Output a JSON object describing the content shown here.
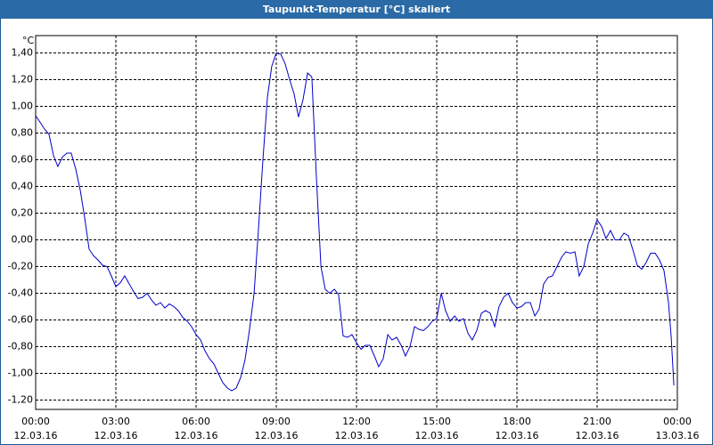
{
  "chart_data": {
    "type": "line",
    "title": "Taupunkt-Temperatur [°C] skaliert",
    "y_unit": "°C",
    "xlim": [
      0,
      24
    ],
    "ylim": [
      -1.27,
      1.53
    ],
    "xticks": [
      {
        "value": 0,
        "label": "00:00"
      },
      {
        "value": 3,
        "label": "03:00"
      },
      {
        "value": 6,
        "label": "06:00"
      },
      {
        "value": 9,
        "label": "09:00"
      },
      {
        "value": 12,
        "label": "12:00"
      },
      {
        "value": 15,
        "label": "15:00"
      },
      {
        "value": 18,
        "label": "18:00"
      },
      {
        "value": 21,
        "label": "21:00"
      },
      {
        "value": 24,
        "label": "00:00"
      }
    ],
    "xtick_dates": [
      "12.03.16",
      "12.03.16",
      "12.03.16",
      "12.03.16",
      "12.03.16",
      "12.03.16",
      "12.03.16",
      "12.03.16",
      "13.03.16"
    ],
    "yticks": [
      {
        "value": 1.4,
        "label": "1,40"
      },
      {
        "value": 1.2,
        "label": "1,20"
      },
      {
        "value": 1.0,
        "label": "1,00"
      },
      {
        "value": 0.8,
        "label": "0,80"
      },
      {
        "value": 0.6,
        "label": "0,60"
      },
      {
        "value": 0.4,
        "label": "0,40"
      },
      {
        "value": 0.2,
        "label": "0,20"
      },
      {
        "value": 0,
        "label": "0,00"
      },
      {
        "value": -0.2,
        "label": "-0,20"
      },
      {
        "value": -0.4,
        "label": "-0,40"
      },
      {
        "value": -0.6,
        "label": "-0,60"
      },
      {
        "value": -0.8,
        "label": "-0,80"
      },
      {
        "value": -1.0,
        "label": "-1,00"
      },
      {
        "value": -1.2,
        "label": "-1,20"
      }
    ],
    "grid": true,
    "series": [
      {
        "color": "#0000c8",
        "x": [
          0,
          0.17,
          0.33,
          0.5,
          0.67,
          0.83,
          1,
          1.17,
          1.33,
          1.5,
          1.67,
          1.83,
          2,
          2.17,
          2.33,
          2.5,
          2.67,
          2.83,
          3,
          3.17,
          3.33,
          3.5,
          3.67,
          3.83,
          4,
          4.17,
          4.33,
          4.5,
          4.67,
          4.83,
          5,
          5.17,
          5.33,
          5.5,
          5.67,
          5.83,
          6,
          6.17,
          6.33,
          6.5,
          6.67,
          6.83,
          7,
          7.17,
          7.33,
          7.5,
          7.67,
          7.83,
          8,
          8.17,
          8.33,
          8.5,
          8.67,
          8.83,
          9,
          9.17,
          9.33,
          9.5,
          9.67,
          9.83,
          10,
          10.17,
          10.33,
          10.5,
          10.67,
          10.83,
          11,
          11.17,
          11.33,
          11.5,
          11.67,
          11.83,
          12,
          12.17,
          12.33,
          12.5,
          12.67,
          12.83,
          13,
          13.17,
          13.33,
          13.5,
          13.67,
          13.83,
          14,
          14.17,
          14.33,
          14.5,
          14.67,
          14.83,
          15,
          15.17,
          15.33,
          15.5,
          15.67,
          15.83,
          16,
          16.17,
          16.33,
          16.5,
          16.67,
          16.83,
          17,
          17.17,
          17.33,
          17.5,
          17.67,
          17.83,
          18,
          18.17,
          18.33,
          18.5,
          18.67,
          18.83,
          19,
          19.17,
          19.33,
          19.5,
          19.67,
          19.83,
          20,
          20.17,
          20.33,
          20.5,
          20.67,
          20.83,
          21,
          21.17,
          21.33,
          21.5,
          21.67,
          21.83,
          22,
          22.17,
          22.33,
          22.5,
          22.67,
          22.83,
          23,
          23.17,
          23.33,
          23.5,
          23.67,
          23.77,
          23.87
        ],
        "values": [
          0.93,
          0.88,
          0.83,
          0.79,
          0.63,
          0.55,
          0.62,
          0.65,
          0.65,
          0.53,
          0.37,
          0.17,
          -0.07,
          -0.12,
          -0.15,
          -0.19,
          -0.2,
          -0.27,
          -0.35,
          -0.32,
          -0.27,
          -0.33,
          -0.39,
          -0.44,
          -0.43,
          -0.4,
          -0.45,
          -0.49,
          -0.47,
          -0.51,
          -0.48,
          -0.5,
          -0.53,
          -0.58,
          -0.61,
          -0.65,
          -0.71,
          -0.75,
          -0.83,
          -0.89,
          -0.93,
          -1.0,
          -1.07,
          -1.11,
          -1.13,
          -1.11,
          -1.03,
          -0.9,
          -0.67,
          -0.4,
          0.07,
          0.6,
          1.07,
          1.3,
          1.4,
          1.39,
          1.32,
          1.2,
          1.09,
          0.92,
          1.05,
          1.25,
          1.22,
          0.47,
          -0.2,
          -0.37,
          -0.4,
          -0.37,
          -0.41,
          -0.72,
          -0.73,
          -0.71,
          -0.77,
          -0.82,
          -0.79,
          -0.79,
          -0.87,
          -0.95,
          -0.89,
          -0.71,
          -0.75,
          -0.73,
          -0.79,
          -0.87,
          -0.8,
          -0.65,
          -0.67,
          -0.68,
          -0.65,
          -0.61,
          -0.59,
          -0.4,
          -0.53,
          -0.61,
          -0.57,
          -0.61,
          -0.59,
          -0.7,
          -0.75,
          -0.68,
          -0.55,
          -0.53,
          -0.55,
          -0.65,
          -0.5,
          -0.43,
          -0.4,
          -0.47,
          -0.51,
          -0.5,
          -0.47,
          -0.47,
          -0.57,
          -0.52,
          -0.33,
          -0.28,
          -0.27,
          -0.2,
          -0.13,
          -0.09,
          -0.1,
          -0.09,
          -0.27,
          -0.2,
          -0.03,
          0.05,
          0.15,
          0.1,
          0.01,
          0.07,
          0,
          0,
          0.05,
          0.03,
          -0.07,
          -0.19,
          -0.22,
          -0.17,
          -0.1,
          -0.1,
          -0.15,
          -0.23,
          -0.47,
          -0.73,
          -1.09
        ]
      }
    ]
  }
}
